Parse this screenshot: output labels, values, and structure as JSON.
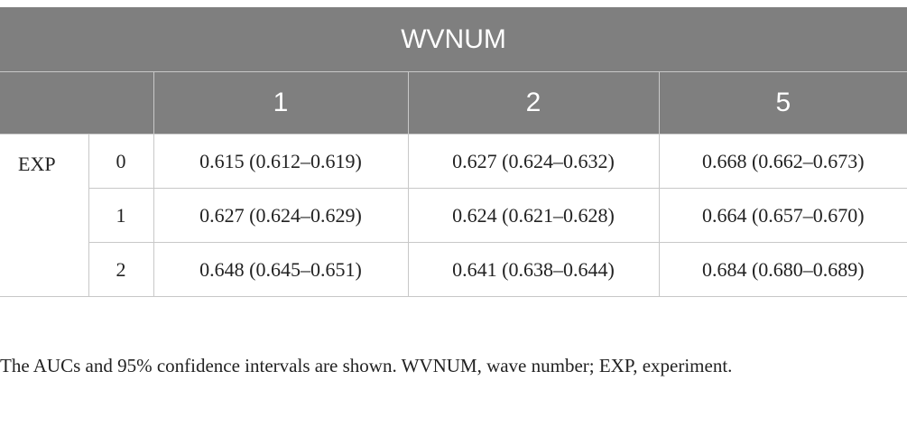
{
  "table": {
    "header": "WVNUM",
    "columns": [
      "1",
      "2",
      "5"
    ],
    "row_group": "EXP",
    "rows": [
      {
        "label": "0",
        "cells": [
          "0.615 (0.612–0.619)",
          "0.627 (0.624–0.632)",
          "0.668 (0.662–0.673)"
        ]
      },
      {
        "label": "1",
        "cells": [
          "0.627 (0.624–0.629)",
          "0.624 (0.621–0.628)",
          "0.664 (0.657–0.670)"
        ]
      },
      {
        "label": "2",
        "cells": [
          "0.648 (0.645–0.651)",
          "0.641 (0.638–0.644)",
          "0.684 (0.680–0.689)"
        ]
      }
    ]
  },
  "footnote": "The AUCs and 95% confidence intervals are shown. WVNUM, wave number; EXP, experiment."
}
